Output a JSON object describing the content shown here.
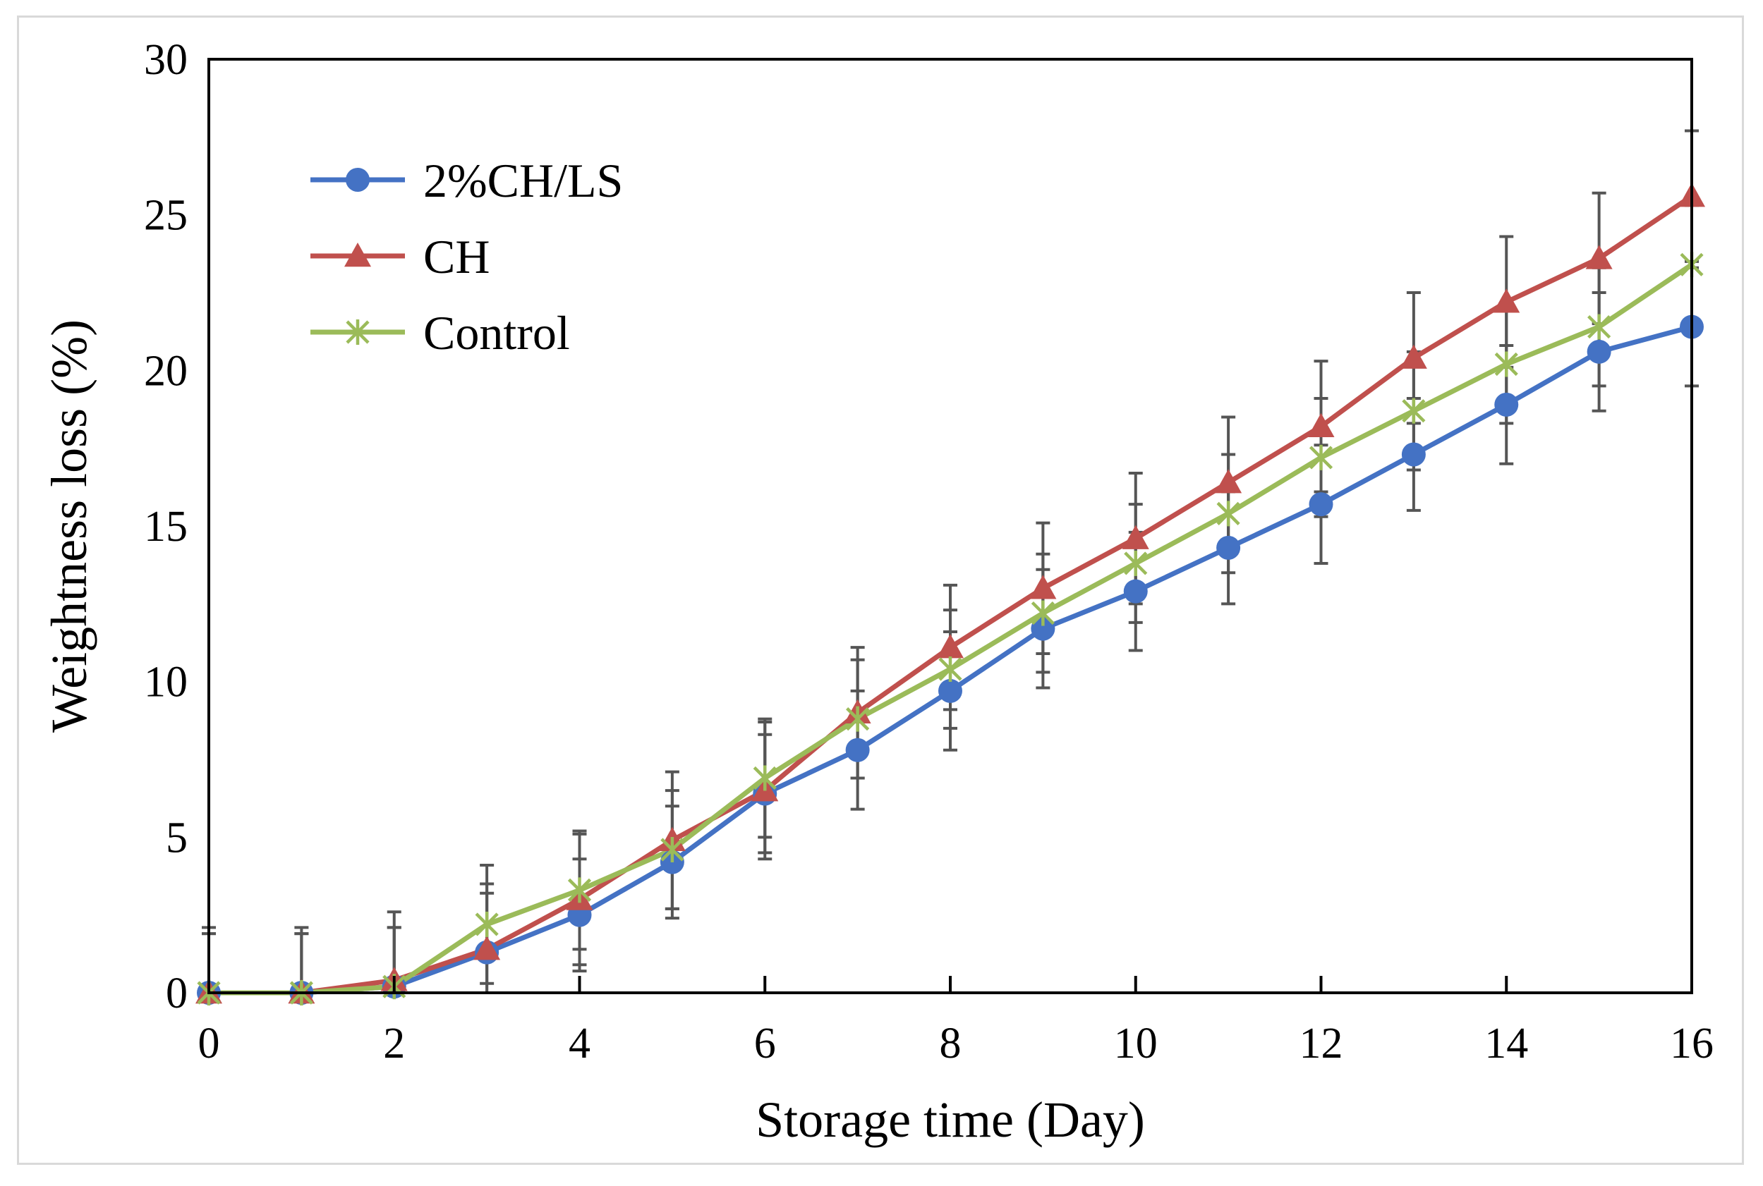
{
  "chart_data": {
    "type": "line",
    "title": "",
    "xlabel": "Storage time (Day)",
    "ylabel": "Weightness loss (%)",
    "xlim": [
      0,
      16
    ],
    "ylim": [
      0,
      30
    ],
    "xticks": [
      0,
      2,
      4,
      6,
      8,
      10,
      12,
      14,
      16
    ],
    "yticks": [
      0,
      5,
      10,
      15,
      20,
      25,
      30
    ],
    "grid": false,
    "legend_position": "top-left",
    "x": [
      0,
      1,
      2,
      3,
      4,
      5,
      6,
      7,
      8,
      9,
      10,
      11,
      12,
      13,
      14,
      15,
      16
    ],
    "series": [
      {
        "name": "2%CH/LS",
        "color": "#4472c4",
        "marker": "circle",
        "values": [
          0.0,
          0.0,
          0.2,
          1.3,
          2.5,
          4.2,
          6.4,
          7.8,
          9.7,
          11.7,
          12.9,
          14.3,
          15.7,
          17.3,
          18.9,
          20.6,
          21.4
        ],
        "errors": [
          1.9,
          1.9,
          1.9,
          1.9,
          1.8,
          1.8,
          1.9,
          1.9,
          1.9,
          1.9,
          1.9,
          1.8,
          1.9,
          1.8,
          1.9,
          1.9,
          1.9
        ]
      },
      {
        "name": "CH",
        "color": "#c0504d",
        "marker": "triangle",
        "values": [
          0.0,
          0.0,
          0.4,
          1.4,
          3.0,
          4.9,
          6.5,
          9.0,
          11.1,
          13.0,
          14.6,
          16.4,
          18.2,
          20.4,
          22.2,
          23.6,
          25.6
        ],
        "errors": [
          2.1,
          2.1,
          2.2,
          2.1,
          2.1,
          2.2,
          2.2,
          2.1,
          2.0,
          2.1,
          2.1,
          2.1,
          2.1,
          2.1,
          2.1,
          2.1,
          2.1
        ]
      },
      {
        "name": "Control",
        "color": "#9bbb59",
        "marker": "star",
        "values": [
          0.0,
          0.0,
          0.2,
          2.2,
          3.3,
          4.6,
          6.9,
          8.8,
          10.4,
          12.2,
          13.8,
          15.4,
          17.2,
          18.7,
          20.2,
          21.4,
          23.4
        ],
        "errors": [
          1.9,
          1.9,
          1.9,
          1.9,
          1.9,
          1.9,
          1.9,
          1.9,
          1.9,
          1.9,
          1.9,
          1.9,
          1.9,
          1.9,
          1.9,
          1.9,
          1.9
        ]
      }
    ]
  },
  "colors": {
    "error_bar": "#555555",
    "axis": "#000000",
    "frame_border": "#d9d9d9"
  }
}
